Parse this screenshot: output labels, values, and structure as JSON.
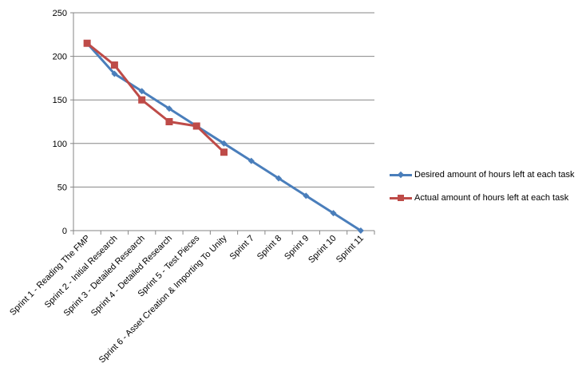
{
  "chart_data": {
    "type": "line",
    "categories": [
      "Sprint 1 - Reading The FMP",
      "Sprint 2 - Initial Research",
      "Sprint 3 - Detailed Research",
      "Sprint 4 - Detailed Research",
      "Sprint 5 - Test Pieces",
      "Sprint 6 - Asset Creation & Importing To Unity",
      "Sprint 7",
      "Sprint 8",
      "Sprint 9",
      "Sprint 10",
      "Sprint 11"
    ],
    "series": [
      {
        "name": "Desired amount of hours left at each task",
        "color": "#4a7ebb",
        "marker": "diamond",
        "values": [
          215,
          180,
          160,
          140,
          120,
          100,
          80,
          60,
          40,
          20,
          0
        ]
      },
      {
        "name": "Actual  amount of hours left at each task",
        "color": "#be4b48",
        "marker": "square",
        "values": [
          215,
          190,
          150,
          125,
          120,
          90,
          null,
          null,
          null,
          null,
          null
        ]
      }
    ],
    "yticks": [
      "0",
      "50",
      "100",
      "150",
      "200",
      "250"
    ],
    "ylim": [
      0,
      250
    ],
    "grid": true,
    "legend_position": "right",
    "title": "",
    "xlabel": "",
    "ylabel": ""
  }
}
